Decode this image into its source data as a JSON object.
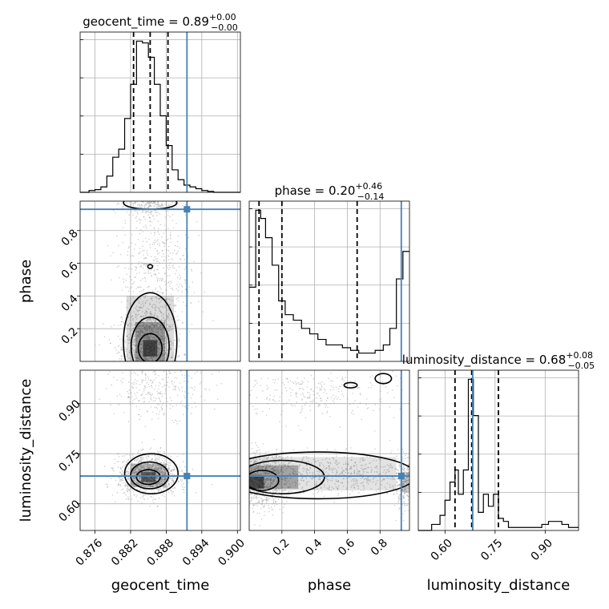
{
  "chart_data": {
    "type": "corner",
    "parameters": [
      "geocent_time",
      "phase",
      "luminosity_distance"
    ],
    "titles": [
      {
        "name": "geocent_time",
        "median": "0.89",
        "plus": "+0.00",
        "minus": "−0.00"
      },
      {
        "name": "phase",
        "median": "0.20",
        "plus": "+0.46",
        "minus": "−0.14"
      },
      {
        "name": "luminosity_distance",
        "median": "0.68",
        "plus": "+0.08",
        "minus": "−0.05"
      }
    ],
    "axis_labels": {
      "x": [
        "geocent_time",
        "phase",
        "luminosity_distance"
      ],
      "y": [
        "phase",
        "luminosity_distance"
      ]
    },
    "ranges": {
      "geocent_time": [
        0.8735,
        0.9005
      ],
      "phase": [
        0.0,
        0.98
      ],
      "luminosity_distance": [
        0.52,
        1.0
      ]
    },
    "ticks": {
      "geocent_time": [
        "0.876",
        "0.882",
        "0.888",
        "0.894",
        "0.900"
      ],
      "phase_x": [
        "0.2",
        "0.4",
        "0.6",
        "0.8"
      ],
      "phase_y": [
        "0.2",
        "0.4",
        "0.6",
        "0.8"
      ],
      "luminosity_distance_x": [
        "0.60",
        "0.75",
        "0.90"
      ],
      "luminosity_distance_y": [
        "0.60",
        "0.75",
        "0.90"
      ]
    },
    "truths": {
      "geocent_time": 0.8915,
      "phase": 0.93,
      "luminosity_distance": 0.683
    },
    "quantiles": {
      "geocent_time": [
        0.8825,
        0.8853,
        0.8883
      ],
      "phase": [
        0.06,
        0.2,
        0.66
      ],
      "luminosity_distance": [
        0.63,
        0.68,
        0.76
      ]
    },
    "histograms": {
      "geocent_time": {
        "edges": [
          0.8735,
          0.875,
          0.876,
          0.877,
          0.878,
          0.879,
          0.88,
          0.881,
          0.882,
          0.883,
          0.884,
          0.885,
          0.886,
          0.887,
          0.888,
          0.889,
          0.89,
          0.891,
          0.892,
          0.893,
          0.894,
          0.895,
          0.896,
          0.897,
          0.898,
          0.899,
          0.9005
        ],
        "counts": [
          0,
          2,
          3,
          6,
          18,
          39,
          48,
          82,
          120,
          168,
          166,
          150,
          120,
          85,
          52,
          25,
          14,
          8,
          6,
          4,
          2,
          1,
          0,
          0,
          0,
          0
        ]
      },
      "phase": {
        "edges": [
          0.0,
          0.04,
          0.07,
          0.1,
          0.14,
          0.18,
          0.22,
          0.27,
          0.32,
          0.37,
          0.42,
          0.47,
          0.52,
          0.57,
          0.62,
          0.67,
          0.72,
          0.77,
          0.82,
          0.86,
          0.9,
          0.94,
          0.98
        ],
        "counts": [
          27,
          55,
          52,
          45,
          35,
          22,
          17,
          15,
          12,
          10,
          8,
          6,
          6,
          5,
          4,
          3,
          3,
          4,
          6,
          12,
          30,
          40
        ]
      },
      "luminosity_distance": {
        "edges": [
          0.52,
          0.56,
          0.585,
          0.6,
          0.615,
          0.63,
          0.64,
          0.655,
          0.67,
          0.685,
          0.7,
          0.715,
          0.73,
          0.745,
          0.76,
          0.775,
          0.79,
          0.82,
          0.86,
          0.89,
          0.91,
          0.93,
          0.95,
          0.97,
          1.0
        ],
        "counts": [
          0,
          2,
          5,
          10,
          16,
          20,
          12,
          20,
          50,
          38,
          6,
          12,
          8,
          12,
          4,
          3,
          1,
          1,
          1,
          2,
          3,
          3,
          2,
          1
        ]
      }
    }
  }
}
